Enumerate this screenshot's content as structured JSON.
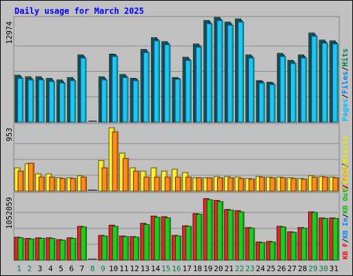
{
  "chart_data": {
    "type": "bar",
    "title": "Daily usage for March 2025",
    "days": [
      "1",
      "2",
      "3",
      "4",
      "5",
      "6",
      "7",
      "8",
      "9",
      "10",
      "11",
      "12",
      "13",
      "14",
      "15",
      "16",
      "17",
      "18",
      "19",
      "20",
      "21",
      "22",
      "23",
      "24",
      "25",
      "26",
      "27",
      "28",
      "29",
      "30",
      "31"
    ],
    "weekend_days": [
      "1",
      "2",
      "8",
      "9",
      "15",
      "16",
      "22",
      "23",
      "29",
      "30"
    ],
    "panels": [
      {
        "id": "pages-files-hits",
        "max_label": "12974",
        "ymax": 12974,
        "legend": [
          {
            "text": "Pages",
            "color": "#00c0ff"
          },
          {
            "text": "/",
            "color": "#000000"
          },
          {
            "text": "Files",
            "color": "#0080ff"
          },
          {
            "text": "/",
            "color": "#000000"
          },
          {
            "text": "Hits",
            "color": "#00805a"
          }
        ],
        "series": [
          {
            "name": "Hits",
            "color": "#1f7a5c",
            "values": [
              6000,
              5800,
              5800,
              5600,
              5400,
              5700,
              8600,
              0,
              5800,
              8700,
              6100,
              5600,
              9300,
              10800,
              10300,
              5700,
              8300,
              10000,
              13000,
              13400,
              12800,
              13200,
              8600,
              5300,
              5100,
              8800,
              7900,
              8600,
              11400,
              10500,
              10400
            ]
          },
          {
            "name": "Files",
            "color": "#1b5ea8",
            "values": [
              5800,
              5600,
              5600,
              5400,
              5200,
              5500,
              8400,
              0,
              5600,
              8600,
              5900,
              5500,
              9100,
              10600,
              10100,
              5600,
              8100,
              9800,
              12800,
              13200,
              12600,
              13000,
              8400,
              5200,
              5000,
              8600,
              7700,
              8400,
              11200,
              10300,
              10200
            ]
          },
          {
            "name": "Pages",
            "color": "#1cc8f0",
            "values": [
              5600,
              5400,
              5400,
              5200,
              5000,
              5300,
              8200,
              0,
              5400,
              8400,
              5700,
              5300,
              8900,
              10400,
              9900,
              5500,
              7900,
              9600,
              12600,
              13000,
              12400,
              12800,
              8200,
              5000,
              4800,
              8400,
              7500,
              8200,
              11000,
              10100,
              10000
            ]
          }
        ]
      },
      {
        "id": "visits-sites",
        "max_label": "953",
        "ymax": 953,
        "legend": [
          {
            "text": "Sites",
            "color": "#ff8000"
          },
          {
            "text": "/",
            "color": "#000000"
          },
          {
            "text": "Visits",
            "color": "#e8e800"
          }
        ],
        "series": [
          {
            "name": "Visits",
            "color": "#ffee33",
            "values": [
              350,
              410,
              260,
              260,
              200,
              200,
              230,
              0,
              460,
              950,
              570,
              350,
              300,
              350,
              300,
              330,
              280,
              200,
              200,
              220,
              220,
              210,
              190,
              220,
              210,
              210,
              200,
              190,
              230,
              220,
              210
            ]
          },
          {
            "name": "Sites",
            "color": "#ff8c1a",
            "values": [
              300,
              420,
              210,
              210,
              190,
              190,
              210,
              0,
              350,
              890,
              490,
              300,
              210,
              210,
              210,
              210,
              210,
              200,
              200,
              200,
              200,
              190,
              180,
              210,
              200,
              200,
              190,
              180,
              210,
              210,
              200
            ]
          }
        ]
      },
      {
        "id": "kb",
        "max_label": "1052059",
        "ymax": 1052059,
        "legend": [
          {
            "text": "KB F",
            "color": "#ff0000"
          },
          {
            "text": "/",
            "color": "#000000"
          },
          {
            "text": "KB In",
            "color": "#0080ff"
          },
          {
            "text": "/",
            "color": "#000000"
          },
          {
            "text": "KB Out",
            "color": "#00c000"
          },
          {
            "text": "/",
            "color": "#000000"
          },
          {
            "text": "Visits",
            "color": "#e8e800"
          }
        ],
        "series": [
          {
            "name": "KB F",
            "color": "#e62525",
            "values": [
              380000,
              360000,
              370000,
              370000,
              340000,
              370000,
              560000,
              0,
              410000,
              580000,
              400000,
              390000,
              610000,
              730000,
              720000,
              410000,
              570000,
              770000,
              1020000,
              990000,
              840000,
              820000,
              540000,
              300000,
              310000,
              560000,
              470000,
              540000,
              800000,
              700000,
              700000
            ]
          },
          {
            "name": "KB Out",
            "color": "#21cc21",
            "values": [
              370000,
              350000,
              360000,
              360000,
              330000,
              360000,
              550000,
              0,
              400000,
              560000,
              390000,
              380000,
              590000,
              710000,
              700000,
              400000,
              560000,
              760000,
              1000000,
              970000,
              830000,
              800000,
              530000,
              290000,
              300000,
              550000,
              460000,
              530000,
              790000,
              690000,
              690000
            ]
          }
        ]
      }
    ]
  }
}
